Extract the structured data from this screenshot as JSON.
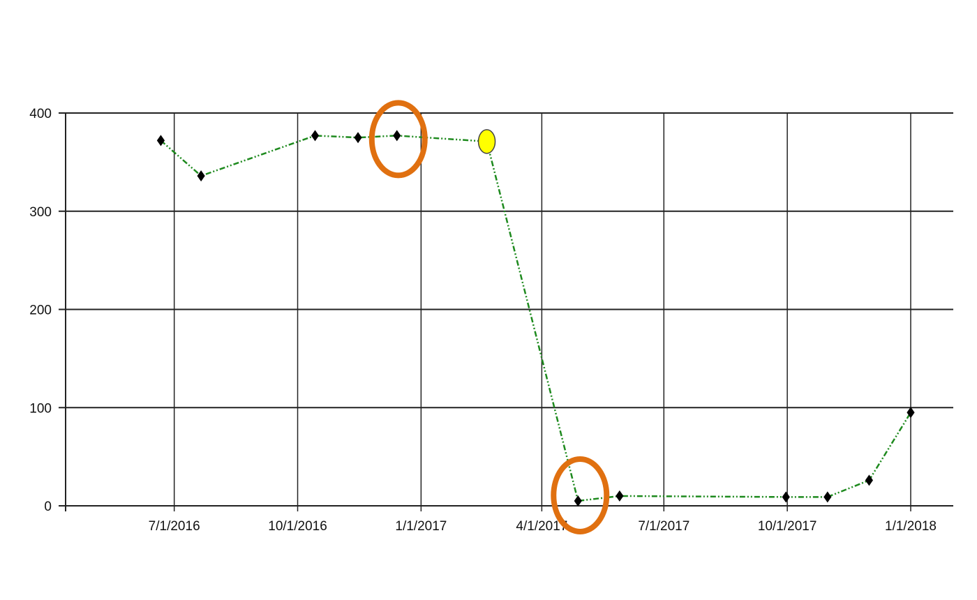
{
  "chart_data": {
    "type": "line",
    "title": "",
    "xlabel": "",
    "ylabel": "",
    "xlim": [
      "2016-06-01",
      "2018-01-01"
    ],
    "ylim": [
      0,
      400
    ],
    "grid": true,
    "x_ticks": [
      "7/1/2016",
      "10/1/2016",
      "1/1/2017",
      "4/1/2017",
      "7/1/2017",
      "10/1/2017",
      "1/1/2018"
    ],
    "y_ticks": [
      "0",
      "100",
      "200",
      "300",
      "400"
    ],
    "series": [
      {
        "color": "#1e8a1e",
        "line_style": "dash-dot-dot",
        "marker": "diamond",
        "x": [
          "2016-06-21",
          "2016-07-21",
          "2016-10-14",
          "2016-11-15",
          "2016-12-14",
          "2017-02-19",
          "2017-04-28",
          "2017-05-29",
          "2017-09-30",
          "2017-10-31",
          "2017-12-01",
          "2018-01-01"
        ],
        "y": [
          372,
          336,
          377,
          375,
          377,
          371,
          5,
          10,
          9,
          9,
          26,
          95
        ]
      }
    ],
    "highlighted_point": {
      "x": "2017-02-19",
      "y": 371,
      "color": "#ffff00"
    },
    "annotations": [
      {
        "type": "circle",
        "around": {
          "x": "2016-12-14",
          "y": 377
        },
        "color": "#e07010"
      },
      {
        "type": "circle",
        "around": {
          "x": "2017-04-28",
          "y": 5
        },
        "color": "#e07010"
      }
    ]
  }
}
